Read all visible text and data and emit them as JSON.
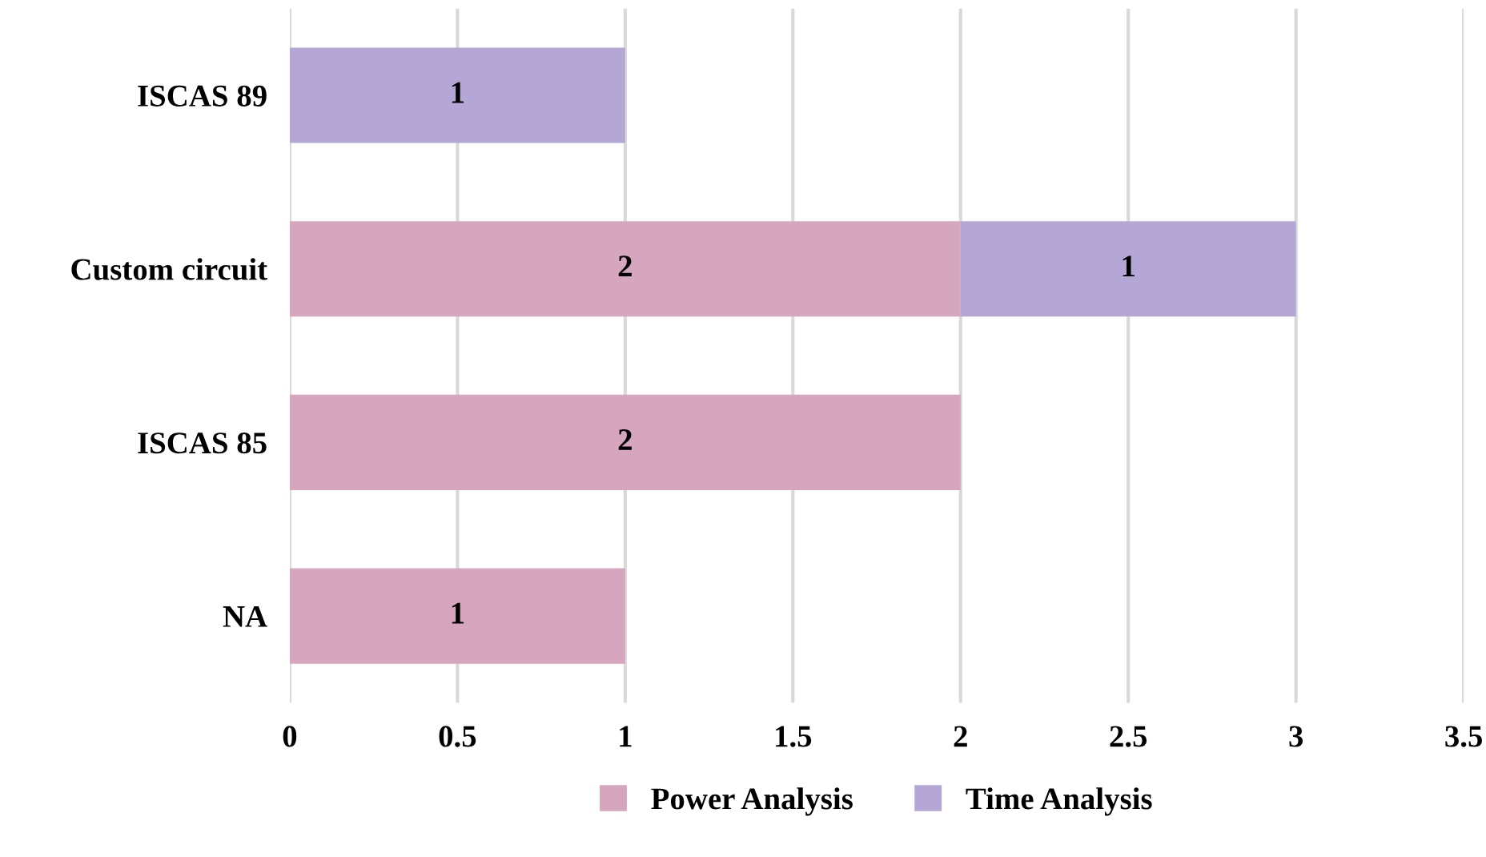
{
  "chart_data": {
    "type": "bar",
    "orientation": "horizontal",
    "stacked": true,
    "categories": [
      "ISCAS 89",
      "Custom circuit",
      "ISCAS 85",
      "NA"
    ],
    "series": [
      {
        "name": "Power Analysis",
        "color": "#d5a6bd",
        "values": [
          null,
          2,
          2,
          1
        ]
      },
      {
        "name": "Time Analysis",
        "color": "#b4a7d6",
        "values": [
          1,
          1,
          null,
          null
        ]
      }
    ],
    "xlim": [
      0,
      3.5
    ],
    "xticks": [
      0,
      0.5,
      1,
      1.5,
      2,
      2.5,
      3,
      3.5
    ],
    "grid": "x",
    "legend": "bottom",
    "data_labels": true
  }
}
